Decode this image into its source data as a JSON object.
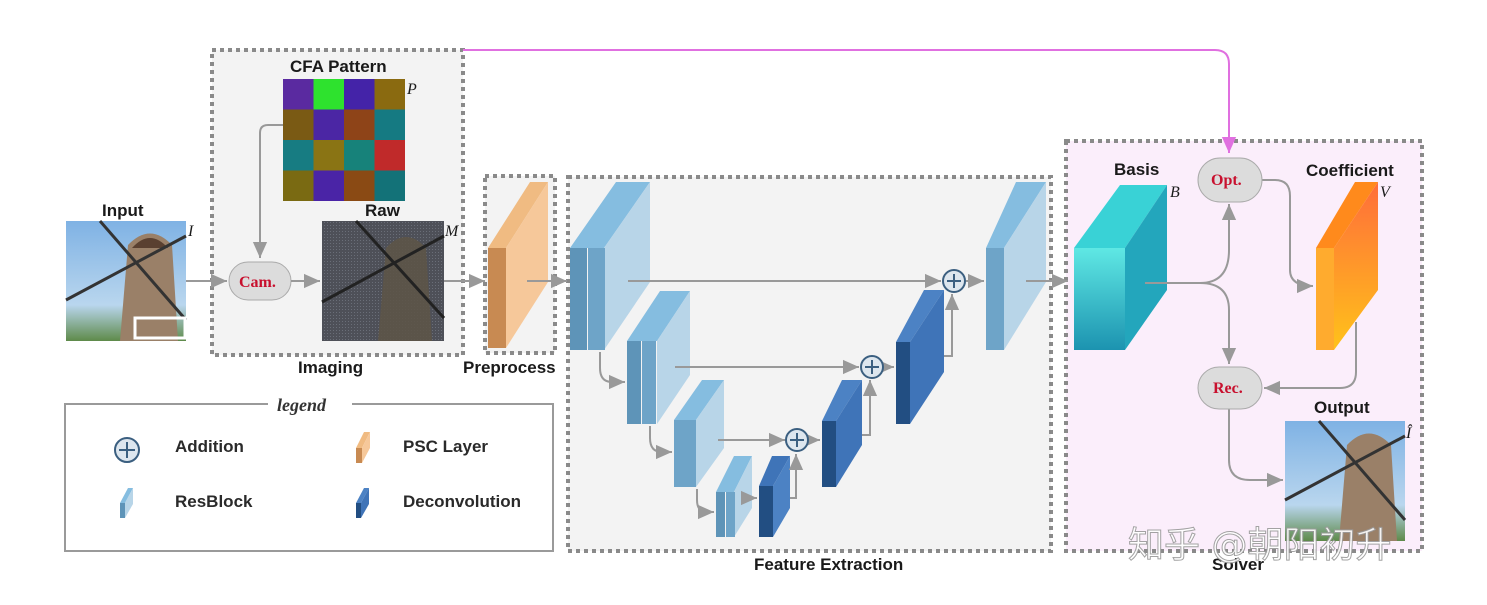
{
  "labels": {
    "input": "Input",
    "cfa": "CFA Pattern",
    "raw": "Raw",
    "imaging": "Imaging",
    "preprocess": "Preprocess",
    "feature": "Feature Extraction",
    "basis": "Basis",
    "coefficient": "Coefficient",
    "output": "Output",
    "solver": "Solver"
  },
  "symbols": {
    "I": "I",
    "P": "P",
    "M": "M",
    "B": "B",
    "V": "V",
    "Ihat": "Î"
  },
  "nodes": {
    "cam": "Cam.",
    "opt": "Opt.",
    "rec": "Rec."
  },
  "legend": {
    "title": "legend",
    "addition": "Addition",
    "psc": "PSC Layer",
    "resblock": "ResBlock",
    "deconv": "Deconvolution"
  },
  "watermark": "知乎 @朝阳初升",
  "colors": {
    "arrow": "#999999",
    "skip_arrow": "#e070e0",
    "node_text": "#c8102e",
    "psc": "#e9a870",
    "resblock": "#6fa6cc",
    "deconv": "#3f74b8",
    "basis": "#2fc4cc",
    "coefficient": "#f9a33a",
    "solver_bg": "#fbeefb"
  },
  "cfa_grid": [
    [
      "#5a2aa0",
      "#2ee22e",
      "#4423a8",
      "#8a6a10"
    ],
    [
      "#7a5a14",
      "#4b26a4",
      "#8e4418",
      "#157a82"
    ],
    [
      "#177c82",
      "#8a7414",
      "#17827a",
      "#c02a2a"
    ],
    [
      "#7a6a12",
      "#4a24a6",
      "#8a4a14",
      "#137278"
    ]
  ],
  "icons": [
    "plus-circle-icon",
    "resblock-icon",
    "psc-layer-icon",
    "deconvolution-icon"
  ]
}
